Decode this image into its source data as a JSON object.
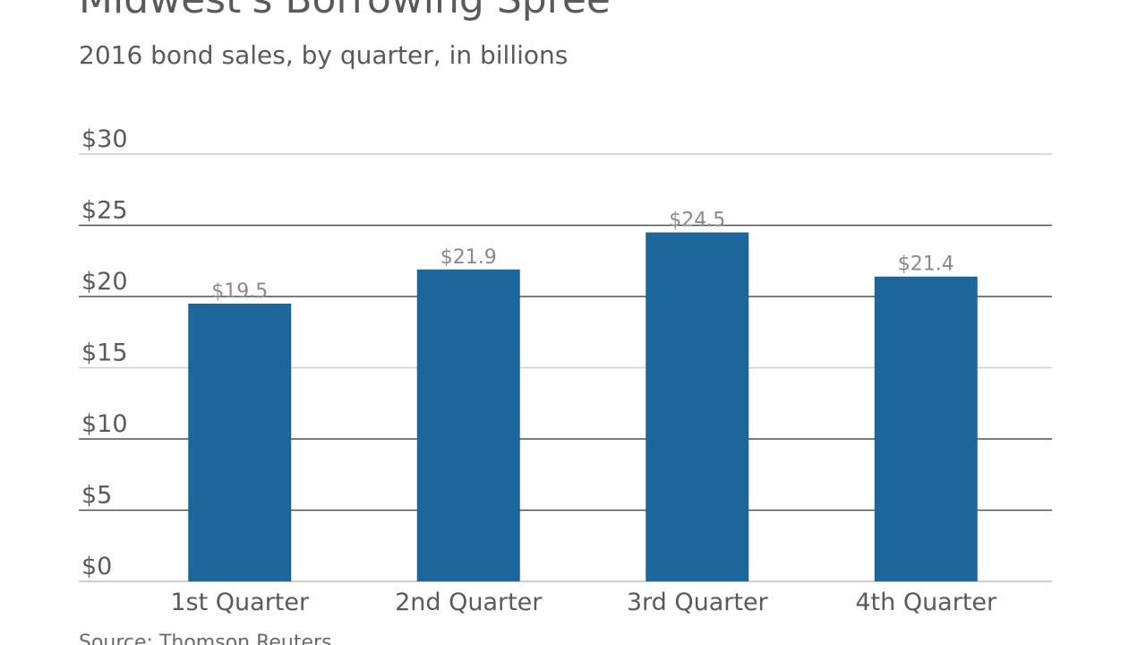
{
  "header": {
    "title": "Midwest's Borrowing Spree",
    "subtitle": "2016 bond sales, by quarter, in billions"
  },
  "footer": {
    "source": "Source: Thomson Reuters"
  },
  "colors": {
    "bar": "#1c669c",
    "grid_light": "#cfcfcf",
    "grid_dark": "#505050",
    "text": "#5a5a5a",
    "data_label": "#8a8a8a"
  },
  "chart_data": {
    "type": "bar",
    "categories": [
      "1st Quarter",
      "2nd Quarter",
      "3rd Quarter",
      "4th Quarter"
    ],
    "values": [
      19.5,
      21.9,
      24.5,
      21.4
    ],
    "data_labels": [
      "$19.5",
      "$21.9",
      "$24.5",
      "$21.4"
    ],
    "title": "Midwest's Borrowing Spree",
    "subtitle": "2016 bond sales, by quarter, in billions",
    "xlabel": "",
    "ylabel": "",
    "ylim": [
      0,
      30
    ],
    "yticks": [
      0,
      5,
      10,
      15,
      20,
      25,
      30
    ],
    "ytick_labels": [
      "$0",
      "$5",
      "$10",
      "$15",
      "$20",
      "$25",
      "$30"
    ],
    "grid": true,
    "legend": "none"
  }
}
